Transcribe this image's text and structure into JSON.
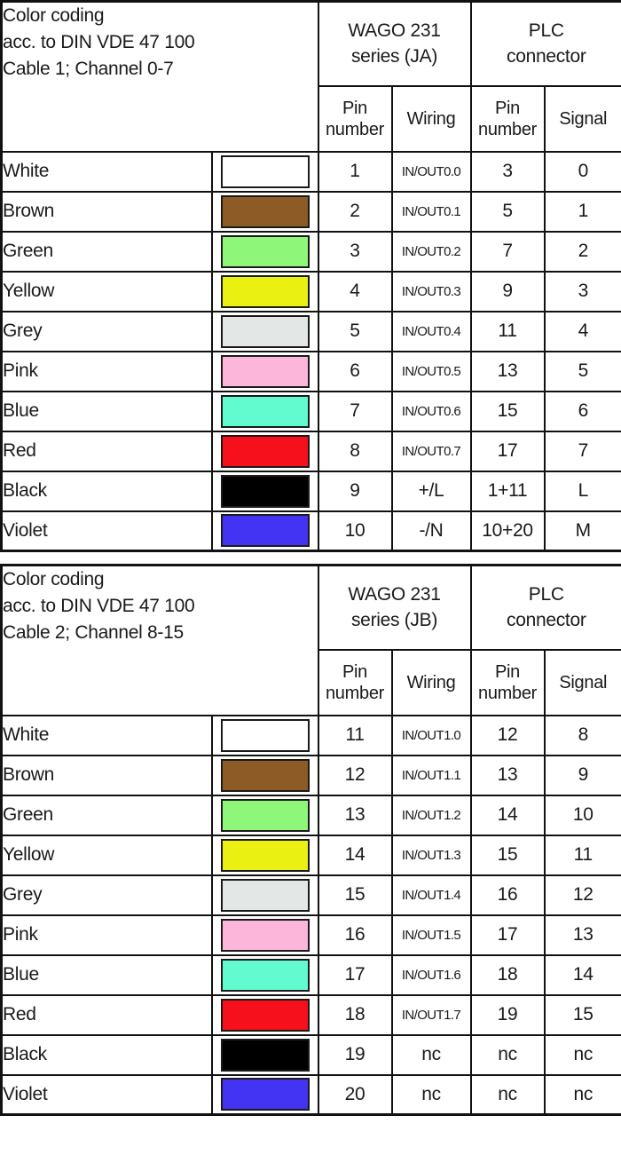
{
  "tables": [
    {
      "header": {
        "title_lines": [
          "Color coding",
          "acc. to DIN VDE 47 100",
          "Cable 1; Channel 0-7"
        ],
        "wago_lines": [
          "WAGO 231",
          "series (JA)"
        ],
        "plc_lines": [
          "PLC",
          "connector"
        ],
        "subheaders": [
          "Pin number",
          "Wiring",
          "Pin number",
          "Signal"
        ]
      },
      "rows": [
        {
          "color_name": "White",
          "swatch_color": "#FFFFFF",
          "wago_pin": "1",
          "wiring": "IN/OUT0.0",
          "plc_pin": "3",
          "signal": "0"
        },
        {
          "color_name": "Brown",
          "swatch_color": "#8D5B25",
          "wago_pin": "2",
          "wiring": "IN/OUT0.1",
          "plc_pin": "5",
          "signal": "1"
        },
        {
          "color_name": "Green",
          "swatch_color": "#8EF779",
          "wago_pin": "3",
          "wiring": "IN/OUT0.2",
          "plc_pin": "7",
          "signal": "2"
        },
        {
          "color_name": "Yellow",
          "swatch_color": "#EAF011",
          "wago_pin": "4",
          "wiring": "IN/OUT0.3",
          "plc_pin": "9",
          "signal": "3"
        },
        {
          "color_name": "Grey",
          "swatch_color": "#E3E7E6",
          "wago_pin": "5",
          "wiring": "IN/OUT0.4",
          "plc_pin": "11",
          "signal": "4"
        },
        {
          "color_name": "Pink",
          "swatch_color": "#FBB6D9",
          "wago_pin": "6",
          "wiring": "IN/OUT0.5",
          "plc_pin": "13",
          "signal": "5"
        },
        {
          "color_name": "Blue",
          "swatch_color": "#62FBD0",
          "wago_pin": "7",
          "wiring": "IN/OUT0.6",
          "plc_pin": "15",
          "signal": "6"
        },
        {
          "color_name": "Red",
          "swatch_color": "#F5101B",
          "wago_pin": "8",
          "wiring": "IN/OUT0.7",
          "plc_pin": "17",
          "signal": "7"
        },
        {
          "color_name": "Black",
          "swatch_color": "#000000",
          "wago_pin": "9",
          "wiring": "+/L",
          "plc_pin": "1+11",
          "signal": "L"
        },
        {
          "color_name": "Violet",
          "swatch_color": "#4333F2",
          "wago_pin": "10",
          "wiring": "-/N",
          "plc_pin": "10+20",
          "signal": "M"
        }
      ]
    },
    {
      "header": {
        "title_lines": [
          "Color coding",
          "acc. to DIN VDE 47 100",
          "Cable 2; Channel 8-15"
        ],
        "wago_lines": [
          "WAGO 231",
          "series (JB)"
        ],
        "plc_lines": [
          "PLC",
          "connector"
        ],
        "subheaders": [
          "Pin number",
          "Wiring",
          "Pin number",
          "Signal"
        ]
      },
      "rows": [
        {
          "color_name": "White",
          "swatch_color": "#FFFFFF",
          "wago_pin": "11",
          "wiring": "IN/OUT1.0",
          "plc_pin": "12",
          "signal": "8"
        },
        {
          "color_name": "Brown",
          "swatch_color": "#8D5B25",
          "wago_pin": "12",
          "wiring": "IN/OUT1.1",
          "plc_pin": "13",
          "signal": "9"
        },
        {
          "color_name": "Green",
          "swatch_color": "#8EF779",
          "wago_pin": "13",
          "wiring": "IN/OUT1.2",
          "plc_pin": "14",
          "signal": "10"
        },
        {
          "color_name": "Yellow",
          "swatch_color": "#EAF011",
          "wago_pin": "14",
          "wiring": "IN/OUT1.3",
          "plc_pin": "15",
          "signal": "11"
        },
        {
          "color_name": "Grey",
          "swatch_color": "#E3E7E6",
          "wago_pin": "15",
          "wiring": "IN/OUT1.4",
          "plc_pin": "16",
          "signal": "12"
        },
        {
          "color_name": "Pink",
          "swatch_color": "#FBB6D9",
          "wago_pin": "16",
          "wiring": "IN/OUT1.5",
          "plc_pin": "17",
          "signal": "13"
        },
        {
          "color_name": "Blue",
          "swatch_color": "#62FBD0",
          "wago_pin": "17",
          "wiring": "IN/OUT1.6",
          "plc_pin": "18",
          "signal": "14"
        },
        {
          "color_name": "Red",
          "swatch_color": "#F5101B",
          "wago_pin": "18",
          "wiring": "IN/OUT1.7",
          "plc_pin": "19",
          "signal": "15"
        },
        {
          "color_name": "Black",
          "swatch_color": "#000000",
          "wago_pin": "19",
          "wiring": "nc",
          "plc_pin": "nc",
          "signal": "nc"
        },
        {
          "color_name": "Violet",
          "swatch_color": "#4333F2",
          "wago_pin": "20",
          "wiring": "nc",
          "plc_pin": "nc",
          "signal": "nc"
        }
      ]
    }
  ],
  "colors": {
    "border": "#111111",
    "text": "#1a1a1a",
    "background": "#ffffff"
  }
}
